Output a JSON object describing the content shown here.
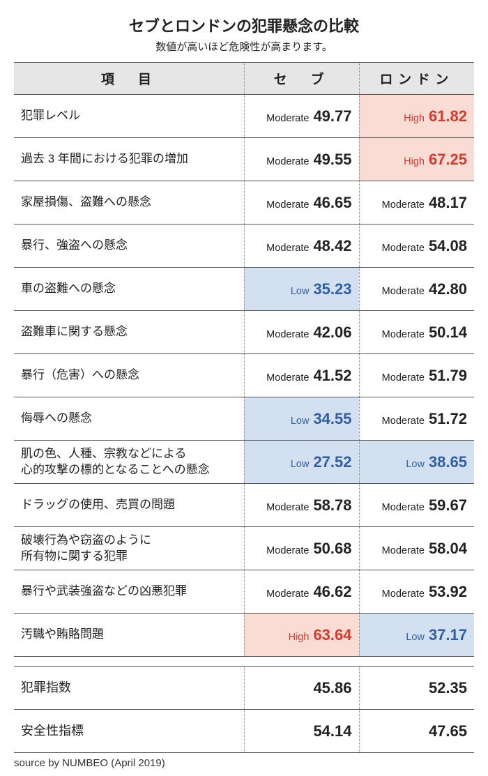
{
  "title": "セブとロンドンの犯罪懸念の比較",
  "subtitle": "数値が高いほど危険性が高まります。",
  "headers": {
    "item": "項　目",
    "cebu": "セ　ブ",
    "london": "ロンドン"
  },
  "rows": [
    {
      "label": "犯罪レベル",
      "cebu": {
        "level": "Moderate",
        "value": "49.77",
        "cls": "moderate"
      },
      "london": {
        "level": "High",
        "value": "61.82",
        "cls": "high"
      }
    },
    {
      "label": "過去 3 年間における犯罪の増加",
      "cebu": {
        "level": "Moderate",
        "value": "49.55",
        "cls": "moderate"
      },
      "london": {
        "level": "High",
        "value": "67.25",
        "cls": "high"
      }
    },
    {
      "label": "家屋損傷、盗難への懸念",
      "cebu": {
        "level": "Moderate",
        "value": "46.65",
        "cls": "moderate"
      },
      "london": {
        "level": "Moderate",
        "value": "48.17",
        "cls": "moderate"
      }
    },
    {
      "label": "暴行、強盗への懸念",
      "cebu": {
        "level": "Moderate",
        "value": "48.42",
        "cls": "moderate"
      },
      "london": {
        "level": "Moderate",
        "value": "54.08",
        "cls": "moderate"
      }
    },
    {
      "label": "車の盗難への懸念",
      "cebu": {
        "level": "Low",
        "value": "35.23",
        "cls": "low"
      },
      "london": {
        "level": "Moderate",
        "value": "42.80",
        "cls": "moderate"
      }
    },
    {
      "label": "盗難車に関する懸念",
      "cebu": {
        "level": "Moderate",
        "value": "42.06",
        "cls": "moderate"
      },
      "london": {
        "level": "Moderate",
        "value": "50.14",
        "cls": "moderate"
      }
    },
    {
      "label": "暴行（危害）への懸念",
      "cebu": {
        "level": "Moderate",
        "value": "41.52",
        "cls": "moderate"
      },
      "london": {
        "level": "Moderate",
        "value": "51.79",
        "cls": "moderate"
      }
    },
    {
      "label": "侮辱への懸念",
      "cebu": {
        "level": "Low",
        "value": "34.55",
        "cls": "low"
      },
      "london": {
        "level": "Moderate",
        "value": "51.72",
        "cls": "moderate"
      }
    },
    {
      "label": "肌の色、人種、宗教などによる\n心的攻撃の標的となることへの懸念",
      "cebu": {
        "level": "Low",
        "value": "27.52",
        "cls": "low"
      },
      "london": {
        "level": "Low",
        "value": "38.65",
        "cls": "low"
      }
    },
    {
      "label": "ドラッグの使用、売買の問題",
      "cebu": {
        "level": "Moderate",
        "value": "58.78",
        "cls": "moderate"
      },
      "london": {
        "level": "Moderate",
        "value": "59.67",
        "cls": "moderate"
      }
    },
    {
      "label": "破壊行為や窃盗のように\n所有物に関する犯罪",
      "cebu": {
        "level": "Moderate",
        "value": "50.68",
        "cls": "moderate"
      },
      "london": {
        "level": "Moderate",
        "value": "58.04",
        "cls": "moderate"
      }
    },
    {
      "label": "暴行や武装強盗などの凶悪犯罪",
      "cebu": {
        "level": "Moderate",
        "value": "46.62",
        "cls": "moderate"
      },
      "london": {
        "level": "Moderate",
        "value": "53.92",
        "cls": "moderate"
      }
    },
    {
      "label": "汚職や賄賂問題",
      "cebu": {
        "level": "High",
        "value": "63.64",
        "cls": "high"
      },
      "london": {
        "level": "Low",
        "value": "37.17",
        "cls": "low"
      }
    }
  ],
  "summary": [
    {
      "label": "犯罪指数",
      "cebu": "45.86",
      "london": "52.35"
    },
    {
      "label": "安全性指標",
      "cebu": "54.14",
      "london": "47.65"
    }
  ],
  "source": "source by NUMBEO (April 2019)",
  "colors": {
    "header_bg": "#e6e6e6",
    "low_bg": "#d3e0f0",
    "low_fg": "#2f5ea3",
    "high_bg": "#f9dcd3",
    "high_fg": "#d63a2e",
    "border": "#555",
    "dotted": "#888"
  }
}
